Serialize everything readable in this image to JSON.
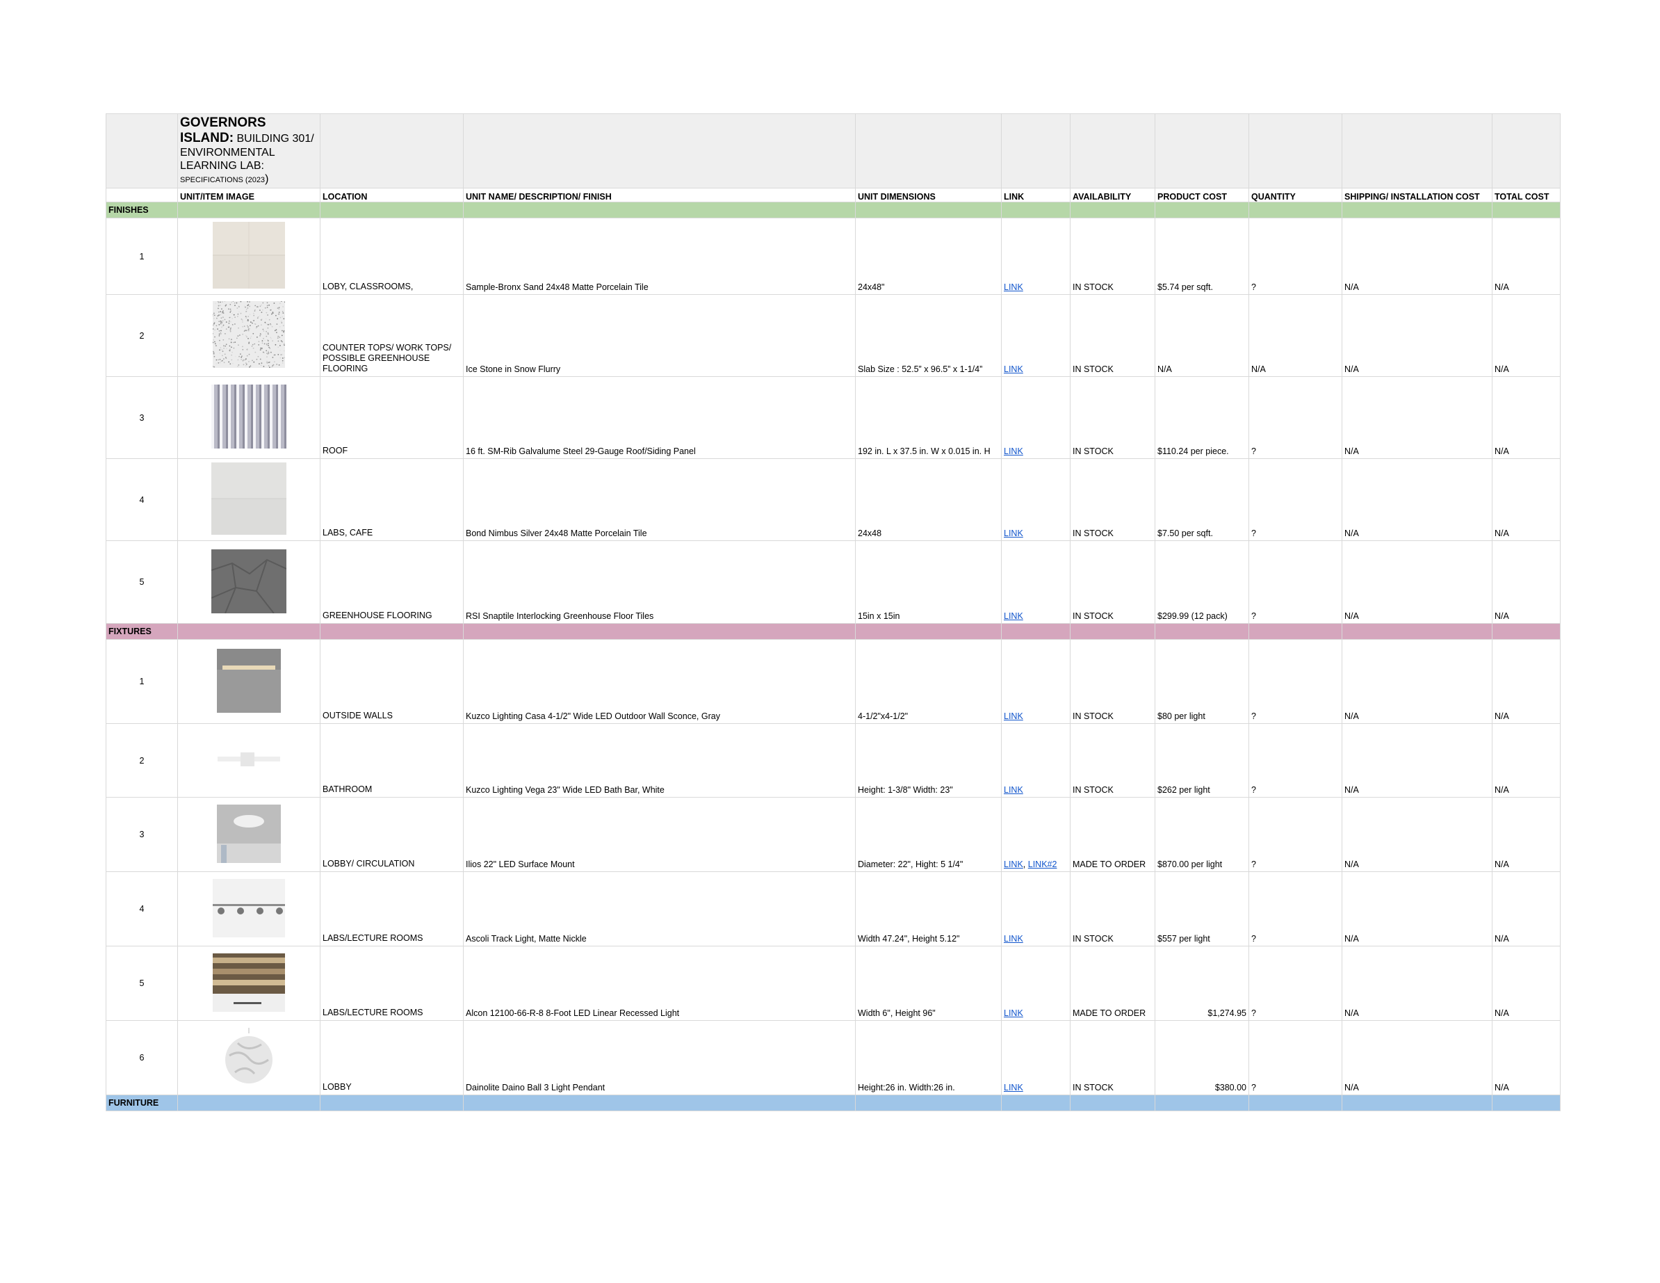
{
  "title": {
    "line1": "GOVERNORS",
    "line2_bold": "ISLAND:",
    "line2_rest": " BUILDING 301/",
    "line3": "ENVIRONMENTAL",
    "line4": "LEARNING LAB:",
    "line5_small": "SPECIFICATIONS (2023",
    "line5_close": ")"
  },
  "headers": {
    "image": "UNIT/ITEM IMAGE",
    "location": "LOCATION",
    "name": "UNIT NAME/ DESCRIPTION/ FINISH",
    "dimensions": "UNIT DIMENSIONS",
    "link": "LINK",
    "availability": "AVAILABILITY",
    "cost": "PRODUCT COST",
    "quantity": "QUANTITY",
    "shipping": "SHIPPING/ INSTALLATION COST",
    "total": "TOTAL COST"
  },
  "sections": {
    "finishes": "FINISHES",
    "fixtures": "FIXTURES",
    "furniture": "FURNITURE"
  },
  "finishes": [
    {
      "num": "1",
      "location": "LOBY, CLASSROOMS,",
      "name": "Sample-Bronx Sand 24x48 Matte Porcelain Tile",
      "dimensions": "24x48\"",
      "link": "LINK",
      "availability": "IN STOCK",
      "cost": "$5.74 per sqft.",
      "quantity": "?",
      "shipping": "N/A",
      "total": "N/A",
      "image": "sand-tile-swatch"
    },
    {
      "num": "2",
      "location": "COUNTER TOPS/ WORK TOPS/ POSSIBLE GREENHOUSE FLOORING",
      "name": "Ice Stone in Snow Flurry",
      "dimensions": "Slab Size : 52.5” x 96.5” x 1-1/4”",
      "link": "LINK",
      "availability": "IN STOCK",
      "cost": "N/A",
      "quantity": "N/A",
      "shipping": "N/A",
      "total": "N/A",
      "image": "terrazzo-swatch"
    },
    {
      "num": "3",
      "location": "ROOF",
      "name": "16 ft. SM-Rib Galvalume Steel 29-Gauge Roof/Siding Panel",
      "dimensions": "192 in. L x 37.5 in. W x 0.015 in. H",
      "link": "LINK",
      "availability": "IN STOCK",
      "cost": "$110.24 per piece.",
      "quantity": "?",
      "shipping": "N/A",
      "total": "N/A",
      "image": "steel-panel-swatch"
    },
    {
      "num": "4",
      "location": "LABS, CAFE",
      "name": "Bond Nimbus Silver 24x48 Matte Porcelain Tile",
      "dimensions": "24x48",
      "link": "LINK",
      "availability": "IN STOCK",
      "cost": "$7.50 per sqft.",
      "quantity": "?",
      "shipping": "N/A",
      "total": "N/A",
      "image": "silver-tile-swatch"
    },
    {
      "num": "5",
      "location": "GREENHOUSE FLOORING",
      "name": "RSI Snaptile Interlocking Greenhouse Floor Tiles",
      "dimensions": "15in x 15in",
      "link": "LINK",
      "availability": "IN STOCK",
      "cost": "$299.99 (12 pack)",
      "quantity": "?",
      "shipping": "N/A",
      "total": "N/A",
      "image": "interlocking-tile-swatch"
    }
  ],
  "fixtures": [
    {
      "num": "1",
      "location": "OUTSIDE WALLS",
      "name": "Kuzco Lighting Casa 4-1/2\" Wide LED Outdoor Wall Sconce, Gray",
      "dimensions": "4-1/2\"x4-1/2\"",
      "link": "LINK",
      "link2": "",
      "availability": "IN STOCK",
      "cost": "$80 per light",
      "cost_align": "left",
      "quantity": "?",
      "shipping": "N/A",
      "total": "N/A",
      "image": "wall-sconce-photo"
    },
    {
      "num": "2",
      "location": "BATHROOM",
      "name": "Kuzco Lighting Vega 23\" Wide LED Bath Bar, White",
      "dimensions": "Height: 1-3/8\"  Width: 23\"",
      "link": "LINK",
      "link2": "",
      "availability": "IN STOCK",
      "cost": "$262 per light",
      "cost_align": "left",
      "quantity": "?",
      "shipping": "N/A",
      "total": "N/A",
      "image": "bath-bar-photo"
    },
    {
      "num": "3",
      "location": "LOBBY/ CIRCULATION",
      "name": "Ilios 22\" LED Surface Mount",
      "dimensions": "Diameter: 22\", Hight: 5 1/4\"",
      "link": "LINK",
      "link2": "LINK#2",
      "availability": "MADE TO ORDER",
      "cost": "$870.00 per light",
      "cost_align": "left",
      "quantity": "?",
      "shipping": "N/A",
      "total": "N/A",
      "image": "surface-mount-photo"
    },
    {
      "num": "4",
      "location": "LABS/LECTURE ROOMS",
      "name": "Ascoli Track Light, Matte Nickle",
      "dimensions": "Width 47.24\", Height 5.12\"",
      "link": "LINK",
      "link2": "",
      "availability": "IN STOCK",
      "cost": "$557 per light",
      "cost_align": "left",
      "quantity": "?",
      "shipping": "N/A",
      "total": "N/A",
      "image": "track-light-photo"
    },
    {
      "num": "5",
      "location": "LABS/LECTURE ROOMS",
      "name": "Alcon 12100-66-R-8 8-Foot LED Linear Recessed Light",
      "dimensions": "Width 6\",  Height 96\"",
      "link": "LINK",
      "link2": "",
      "availability": "MADE TO ORDER",
      "cost": "$1,274.95",
      "cost_align": "right",
      "quantity": "?",
      "shipping": "N/A",
      "total": "N/A",
      "image": "linear-recessed-photo"
    },
    {
      "num": "6",
      "location": "LOBBY",
      "name": "Dainolite Daino Ball 3 Light Pendant",
      "dimensions": "Height:26 in. Width:26 in.",
      "link": "LINK",
      "link2": "",
      "availability": "IN STOCK",
      "cost": "$380.00",
      "cost_align": "right",
      "quantity": "?",
      "shipping": "N/A",
      "total": "N/A",
      "image": "pendant-photo"
    }
  ]
}
